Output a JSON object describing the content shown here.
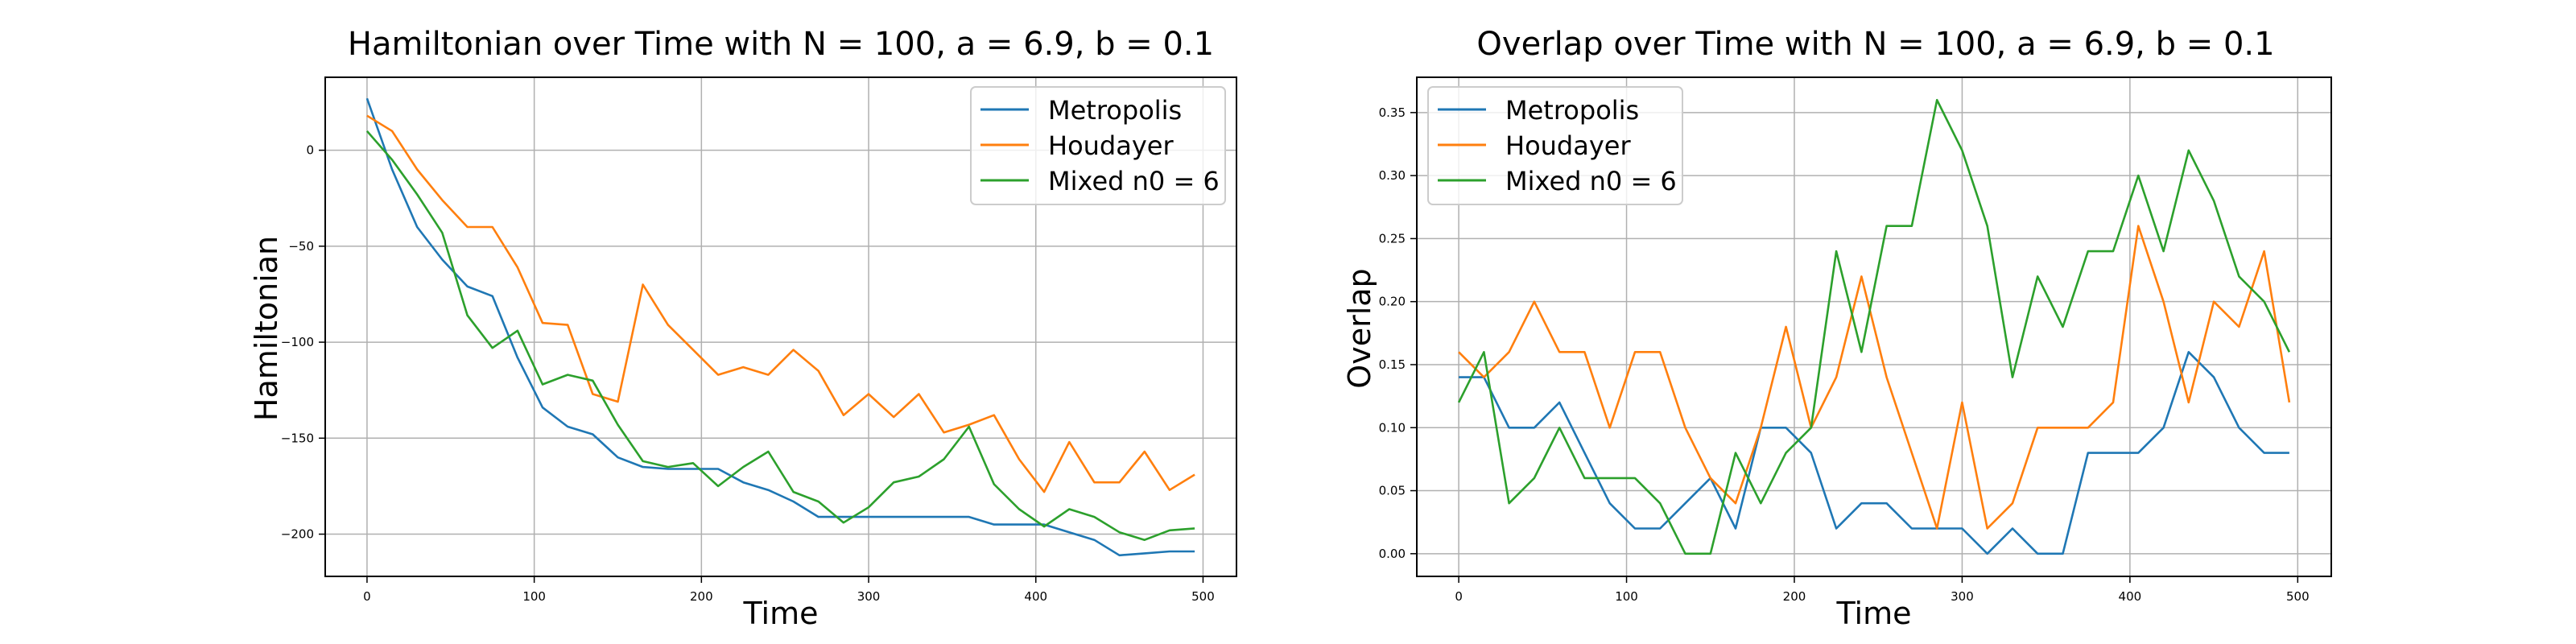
{
  "chart_data": [
    {
      "type": "line",
      "title": "Hamiltonian over Time with N = 100, a = 6.9, b = 0.1",
      "xlabel": "Time",
      "ylabel": "Hamiltonian",
      "xlim": [
        -25,
        520
      ],
      "ylim": [
        -222,
        38
      ],
      "xticks": [
        0,
        100,
        200,
        300,
        400,
        500
      ],
      "yticks": [
        0,
        -50,
        -100,
        -150,
        -200
      ],
      "grid": true,
      "legend_position": "top-right",
      "x": [
        0,
        15,
        30,
        45,
        60,
        75,
        90,
        105,
        120,
        135,
        150,
        165,
        180,
        195,
        210,
        225,
        240,
        255,
        270,
        285,
        300,
        315,
        330,
        345,
        360,
        375,
        390,
        405,
        420,
        435,
        450,
        465,
        480,
        495
      ],
      "series": [
        {
          "name": "Metropolis",
          "color": "#1f77b4",
          "values": [
            27,
            -10,
            -40,
            -57,
            -71,
            -76,
            -108,
            -134,
            -144,
            -148,
            -160,
            -165,
            -166,
            -166,
            -166,
            -173,
            -177,
            -183,
            -191,
            -191,
            -191,
            -191,
            -191,
            -191,
            -191,
            -195,
            -195,
            -195,
            -199,
            -203,
            -211,
            -210,
            -209,
            -209
          ]
        },
        {
          "name": "Houdayer",
          "color": "#ff7f0e",
          "values": [
            18,
            10,
            -10,
            -26,
            -40,
            -40,
            -61,
            -90,
            -91,
            -127,
            -131,
            -70,
            -91,
            -104,
            -117,
            -113,
            -117,
            -104,
            -115,
            -138,
            -127,
            -139,
            -127,
            -147,
            -143,
            -138,
            -161,
            -178,
            -152,
            -173,
            -173,
            -157,
            -177,
            -169
          ]
        },
        {
          "name": "Mixed n0 = 6",
          "color": "#2ca02c",
          "values": [
            10,
            -5,
            -23,
            -43,
            -86,
            -103,
            -94,
            -122,
            -117,
            -120,
            -143,
            -162,
            -165,
            -163,
            -175,
            -165,
            -157,
            -178,
            -183,
            -194,
            -186,
            -173,
            -170,
            -161,
            -144,
            -174,
            -187,
            -196,
            -187,
            -191,
            -199,
            -203,
            -198,
            -197
          ]
        }
      ]
    },
    {
      "type": "line",
      "title": "Overlap over Time with N = 100, a = 6.9, b = 0.1",
      "xlabel": "Time",
      "ylabel": "Overlap",
      "xlim": [
        -25,
        520
      ],
      "ylim": [
        -0.018,
        0.378
      ],
      "xticks": [
        0,
        100,
        200,
        300,
        400,
        500
      ],
      "yticks": [
        0.0,
        0.05,
        0.1,
        0.15,
        0.2,
        0.25,
        0.3,
        0.35
      ],
      "grid": true,
      "legend_position": "top-left",
      "x": [
        0,
        15,
        30,
        45,
        60,
        75,
        90,
        105,
        120,
        135,
        150,
        165,
        180,
        195,
        210,
        225,
        240,
        255,
        270,
        285,
        300,
        315,
        330,
        345,
        360,
        375,
        390,
        405,
        420,
        435,
        450,
        465,
        480,
        495
      ],
      "series": [
        {
          "name": "Metropolis",
          "color": "#1f77b4",
          "values": [
            0.14,
            0.14,
            0.1,
            0.1,
            0.12,
            0.08,
            0.04,
            0.02,
            0.02,
            0.04,
            0.06,
            0.02,
            0.1,
            0.1,
            0.08,
            0.02,
            0.04,
            0.04,
            0.02,
            0.02,
            0.02,
            0.0,
            0.02,
            0.0,
            0.0,
            0.08,
            0.08,
            0.08,
            0.1,
            0.16,
            0.14,
            0.1,
            0.08,
            0.08
          ]
        },
        {
          "name": "Houdayer",
          "color": "#ff7f0e",
          "values": [
            0.16,
            0.14,
            0.16,
            0.2,
            0.16,
            0.16,
            0.1,
            0.16,
            0.16,
            0.1,
            0.06,
            0.04,
            0.1,
            0.18,
            0.1,
            0.14,
            0.22,
            0.14,
            0.08,
            0.02,
            0.12,
            0.02,
            0.04,
            0.1,
            0.1,
            0.1,
            0.12,
            0.26,
            0.2,
            0.12,
            0.2,
            0.18,
            0.24,
            0.12
          ]
        },
        {
          "name": "Mixed n0 = 6",
          "color": "#2ca02c",
          "values": [
            0.12,
            0.16,
            0.04,
            0.06,
            0.1,
            0.06,
            0.06,
            0.06,
            0.04,
            0.0,
            0.0,
            0.08,
            0.04,
            0.08,
            0.1,
            0.24,
            0.16,
            0.26,
            0.26,
            0.36,
            0.32,
            0.26,
            0.14,
            0.22,
            0.18,
            0.24,
            0.24,
            0.3,
            0.24,
            0.32,
            0.28,
            0.22,
            0.2,
            0.16
          ]
        }
      ]
    }
  ],
  "tick_labels": {
    "hamiltonian_x": [
      "0",
      "100",
      "200",
      "300",
      "400",
      "500"
    ],
    "hamiltonian_y": [
      "0",
      "−50",
      "−100",
      "−150",
      "−200"
    ],
    "overlap_x": [
      "0",
      "100",
      "200",
      "300",
      "400",
      "500"
    ],
    "overlap_y": [
      "0.00",
      "0.05",
      "0.10",
      "0.15",
      "0.20",
      "0.25",
      "0.30",
      "0.35"
    ]
  }
}
